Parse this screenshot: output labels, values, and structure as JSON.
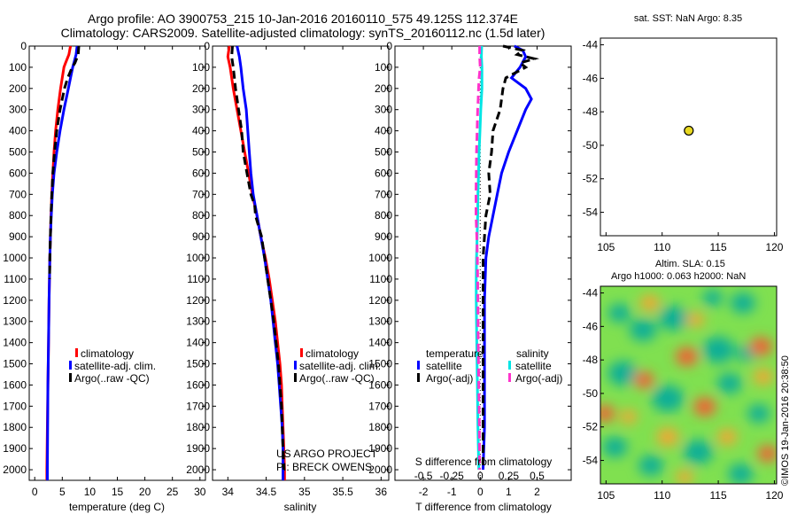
{
  "header": {
    "line1": "Argo profile: AO 3900753_215 10-Jan-2016 20160110_575 49.125S 112.374E",
    "line2": "Climatology: CARS2009. Satellite-adjusted climatology: synTS_20160112.nc (1.5d later)"
  },
  "credit": {
    "project": "US ARGO PROJECT",
    "pi": "PI: BRECK OWENS"
  },
  "watermark": "©IMOS 19-Jan-2016 20:38:50",
  "colors": {
    "climatology": "#ff0000",
    "satellite": "#0000ff",
    "argo": "#000000",
    "sal_satellite": "#00e5e5",
    "sal_argo": "#ff33cc",
    "marker": "#e8d820"
  },
  "depth_axis": {
    "min": 0,
    "max": 2050,
    "ticks": [
      0,
      100,
      200,
      300,
      400,
      500,
      600,
      700,
      800,
      900,
      1000,
      1100,
      1200,
      1300,
      1400,
      1500,
      1600,
      1700,
      1800,
      1900,
      2000
    ]
  },
  "chart_data": [
    {
      "type": "line",
      "xlabel": "temperature (deg C)",
      "xlim": [
        -1,
        31
      ],
      "ylim": [
        2050,
        0
      ],
      "xticks": [
        0,
        5,
        10,
        15,
        20,
        25,
        30
      ],
      "legend": [
        "climatology",
        "satellite-adj. clim.",
        "Argo(..raw -QC)"
      ],
      "series": [
        {
          "name": "climatology",
          "style": "solid",
          "color": "#ff0000",
          "depth": [
            0,
            40,
            80,
            100,
            150,
            200,
            300,
            400,
            500,
            600,
            700,
            800,
            900,
            1000,
            1200,
            1400,
            1600,
            1800,
            1900,
            2000,
            2050
          ],
          "values": [
            6.5,
            6.2,
            5.6,
            5.3,
            5.0,
            4.7,
            4.2,
            3.8,
            3.5,
            3.3,
            3.1,
            2.95,
            2.85,
            2.75,
            2.6,
            2.5,
            2.4,
            2.3,
            2.25,
            2.2,
            2.2
          ]
        },
        {
          "name": "satellite-adj. clim.",
          "style": "solid",
          "color": "#0000ff",
          "depth": [
            0,
            40,
            80,
            100,
            150,
            200,
            300,
            400,
            500,
            600,
            700,
            800,
            900,
            1000,
            1200,
            1400,
            1600,
            1800,
            2000,
            2050
          ],
          "values": [
            7.7,
            7.5,
            7.1,
            6.9,
            6.5,
            6.1,
            5.3,
            4.6,
            4.0,
            3.5,
            3.2,
            3.0,
            2.85,
            2.75,
            2.6,
            2.5,
            2.4,
            2.35,
            2.3,
            2.3
          ]
        },
        {
          "name": "Argo(..raw -QC)",
          "style": "dashed",
          "color": "#000000",
          "depth": [
            0,
            40,
            80,
            100,
            150,
            200,
            300,
            400,
            500,
            600,
            700,
            800,
            900,
            1000,
            1100
          ],
          "values": [
            8.0,
            7.9,
            7.3,
            6.8,
            6.0,
            5.4,
            4.6,
            4.0,
            3.6,
            3.3,
            3.1,
            2.95,
            2.85,
            2.75,
            2.7
          ]
        }
      ]
    },
    {
      "type": "line",
      "xlabel": "salinity",
      "xlim": [
        33.8,
        36.1
      ],
      "ylim": [
        2050,
        0
      ],
      "xticks": [
        34,
        34.5,
        35,
        35.5,
        36
      ],
      "legend": [
        "climatology",
        "satellite-adj. clim.",
        "Argo(..raw -QC)"
      ],
      "series": [
        {
          "name": "climatology",
          "style": "solid",
          "color": "#ff0000",
          "depth": [
            0,
            50,
            100,
            200,
            300,
            400,
            500,
            600,
            700,
            800,
            900,
            1000,
            1100,
            1200,
            1300,
            1400,
            1500,
            1600,
            1700,
            1800,
            1900,
            2000,
            2050
          ],
          "values": [
            34.02,
            34.0,
            34.03,
            34.07,
            34.12,
            34.17,
            34.22,
            34.27,
            34.32,
            34.38,
            34.43,
            34.49,
            34.54,
            34.58,
            34.62,
            34.65,
            34.68,
            34.7,
            34.71,
            34.72,
            34.73,
            34.74,
            34.74
          ]
        },
        {
          "name": "satellite-adj. clim.",
          "style": "solid",
          "color": "#0000ff",
          "depth": [
            0,
            50,
            100,
            200,
            300,
            400,
            500,
            600,
            700,
            800,
            900,
            1000,
            1100,
            1200,
            1300,
            1400,
            1500,
            1600,
            1700,
            1800,
            1900,
            2000,
            2050
          ],
          "values": [
            34.12,
            34.15,
            34.17,
            34.2,
            34.24,
            34.26,
            34.28,
            34.3,
            34.33,
            34.38,
            34.43,
            34.48,
            34.52,
            34.56,
            34.59,
            34.62,
            34.65,
            34.67,
            34.69,
            34.71,
            34.72,
            34.72,
            34.72
          ]
        },
        {
          "name": "Argo(..raw -QC)",
          "style": "dashed",
          "color": "#000000",
          "depth": [
            0,
            50,
            100,
            200,
            300,
            400,
            500,
            600,
            700,
            750,
            800,
            850,
            900,
            1000,
            1100,
            1200,
            1300,
            1400,
            1500,
            1600,
            1700,
            1800,
            1900,
            2000
          ],
          "values": [
            34.06,
            34.05,
            34.07,
            34.1,
            34.14,
            34.18,
            34.2,
            34.25,
            34.3,
            34.35,
            34.36,
            34.4,
            34.44,
            34.48,
            34.52,
            34.56,
            34.6,
            34.63,
            34.66,
            34.68,
            34.7,
            34.71,
            34.72,
            34.73
          ]
        }
      ]
    },
    {
      "type": "line",
      "xlabel": "T difference from climatology",
      "title": "S difference from climatology",
      "xlim": [
        -3,
        3.2
      ],
      "ylim": [
        2050,
        0
      ],
      "xticks": [
        -2,
        -1,
        0,
        1,
        2
      ],
      "top_ticks": [
        "-0.5",
        "-0.25",
        "0",
        "0.25",
        "0.5"
      ],
      "legend_groups": [
        {
          "title": "temperature",
          "items": [
            "satellite",
            "Argo(-adj)"
          ]
        },
        {
          "title": "salinity",
          "items": [
            "satellite",
            "Argo(-adj)"
          ]
        }
      ],
      "series": [
        {
          "name": "temperature satellite",
          "style": "solid",
          "color": "#0000ff",
          "depth": [
            0,
            20,
            50,
            100,
            150,
            200,
            250,
            300,
            400,
            500,
            600,
            700,
            800,
            900,
            1000,
            1200,
            1400,
            1600,
            1800,
            2000
          ],
          "values": [
            1.2,
            1.5,
            1.6,
            1.4,
            1.1,
            1.6,
            1.8,
            1.6,
            1.3,
            1.0,
            0.75,
            0.6,
            0.45,
            0.3,
            0.2,
            0.15,
            0.15,
            0.15,
            0.15,
            0.1
          ]
        },
        {
          "name": "temperature Argo(-adj)",
          "style": "dashed",
          "color": "#000000",
          "depth": [
            0,
            20,
            40,
            60,
            80,
            100,
            150,
            200,
            300,
            400,
            500,
            600,
            700,
            800,
            900,
            1000,
            1200,
            1400,
            1600,
            1800,
            2000
          ],
          "values": [
            0.8,
            1.5,
            1.3,
            1.9,
            1.4,
            1.6,
            0.9,
            0.8,
            0.7,
            0.45,
            0.4,
            0.3,
            0.35,
            0.2,
            0.15,
            0.1,
            0.1,
            0.1,
            0.1,
            0.1,
            0.1
          ]
        },
        {
          "name": "salinity satellite",
          "style": "solid",
          "color": "#00e5e5",
          "depth": [
            0,
            50,
            100,
            150,
            200,
            300,
            400,
            500,
            600,
            700,
            800,
            900,
            1000,
            1100,
            1200,
            1400,
            1600,
            1800,
            2000
          ],
          "values": [
            0.05,
            0.04,
            0.06,
            0.06,
            0.06,
            0.02,
            -0.01,
            -0.04,
            -0.06,
            -0.08,
            -0.09,
            -0.11,
            -0.13,
            -0.14,
            -0.14,
            -0.12,
            -0.1,
            -0.08,
            -0.05
          ]
        },
        {
          "name": "salinity Argo(-adj)",
          "style": "dashed",
          "color": "#ff33cc",
          "depth": [
            0,
            40,
            80,
            100,
            150,
            200,
            250,
            300,
            400,
            500,
            600,
            700,
            800,
            900,
            1000,
            1100,
            1200,
            1400,
            1600,
            1800,
            2000
          ],
          "values": [
            -0.02,
            -0.02,
            -0.01,
            0.0,
            -0.04,
            -0.06,
            -0.07,
            -0.09,
            -0.11,
            -0.13,
            -0.14,
            -0.15,
            -0.15,
            -0.12,
            -0.1,
            -0.09,
            -0.08,
            -0.07,
            -0.05,
            -0.03,
            -0.02
          ]
        }
      ]
    },
    {
      "type": "scatter",
      "title": "sat. SST: NaN Argo: 8.35",
      "xlim": [
        104.5,
        120.2
      ],
      "ylim": [
        -55.4,
        -43.6
      ],
      "xticks": [
        105,
        110,
        115,
        120
      ],
      "yticks": [
        -44,
        -46,
        -48,
        -50,
        -52,
        -54
      ],
      "points": [
        {
          "lon": 112.374,
          "lat": -49.125
        }
      ]
    },
    {
      "type": "heatmap",
      "title_line1": "Altim. SLA: 0.15",
      "title_line2": "Argo h1000: 0.063 h2000: NaN",
      "xlim": [
        104.5,
        120.2
      ],
      "ylim": [
        -55.4,
        -43.6
      ],
      "xticks": [
        105,
        110,
        115,
        120
      ],
      "yticks": [
        -44,
        -46,
        -48,
        -50,
        -52,
        -54
      ],
      "colormap": [
        "#00a8a0",
        "#33c860",
        "#80e050",
        "#e8e850",
        "#ffa030",
        "#ff5030"
      ],
      "blobs": [
        {
          "lon": 106.2,
          "lat": -45.2,
          "r": 0.9,
          "v": -1.0
        },
        {
          "lon": 108.3,
          "lat": -46.2,
          "r": 1.1,
          "v": -0.9
        },
        {
          "lon": 111.0,
          "lat": -45.5,
          "r": 1.2,
          "v": -1.0
        },
        {
          "lon": 114.5,
          "lat": -44.3,
          "r": 0.8,
          "v": -0.8
        },
        {
          "lon": 117.2,
          "lat": -44.6,
          "r": 1.0,
          "v": -0.9
        },
        {
          "lon": 115.0,
          "lat": -47.4,
          "r": 1.3,
          "v": -1.0
        },
        {
          "lon": 117.5,
          "lat": -47.6,
          "r": 0.8,
          "v": -0.9
        },
        {
          "lon": 106.5,
          "lat": -48.8,
          "r": 1.2,
          "v": -0.9
        },
        {
          "lon": 110.5,
          "lat": -50.3,
          "r": 1.3,
          "v": -1.0
        },
        {
          "lon": 116.0,
          "lat": -49.4,
          "r": 1.0,
          "v": -1.0
        },
        {
          "lon": 118.6,
          "lat": -51.2,
          "r": 0.9,
          "v": -0.8
        },
        {
          "lon": 105.8,
          "lat": -53.2,
          "r": 1.0,
          "v": -0.9
        },
        {
          "lon": 109.0,
          "lat": -54.3,
          "r": 1.0,
          "v": -1.0
        },
        {
          "lon": 113.2,
          "lat": -53.5,
          "r": 1.2,
          "v": -0.9
        },
        {
          "lon": 117.0,
          "lat": -54.8,
          "r": 1.0,
          "v": -0.8
        },
        {
          "lon": 118.8,
          "lat": -47.2,
          "r": 0.9,
          "v": 0.9
        },
        {
          "lon": 112.2,
          "lat": -47.8,
          "r": 0.9,
          "v": 0.8
        },
        {
          "lon": 108.4,
          "lat": -49.2,
          "r": 0.8,
          "v": 0.8
        },
        {
          "lon": 113.8,
          "lat": -50.8,
          "r": 0.9,
          "v": 0.8
        },
        {
          "lon": 115.8,
          "lat": -52.6,
          "r": 0.8,
          "v": 0.7
        },
        {
          "lon": 104.9,
          "lat": -51.2,
          "r": 0.8,
          "v": 0.9
        },
        {
          "lon": 110.5,
          "lat": -52.6,
          "r": 0.9,
          "v": 0.6
        },
        {
          "lon": 119.4,
          "lat": -53.6,
          "r": 0.8,
          "v": 0.8
        },
        {
          "lon": 108.9,
          "lat": -44.6,
          "r": 0.8,
          "v": 0.5
        },
        {
          "lon": 113.0,
          "lat": -45.6,
          "r": 0.7,
          "v": 0.5
        },
        {
          "lon": 119.0,
          "lat": -49.0,
          "r": 0.8,
          "v": 0.6
        },
        {
          "lon": 107.0,
          "lat": -51.4,
          "r": 0.7,
          "v": 0.4
        },
        {
          "lon": 112.0,
          "lat": -55.0,
          "r": 0.7,
          "v": 0.5
        }
      ]
    }
  ]
}
